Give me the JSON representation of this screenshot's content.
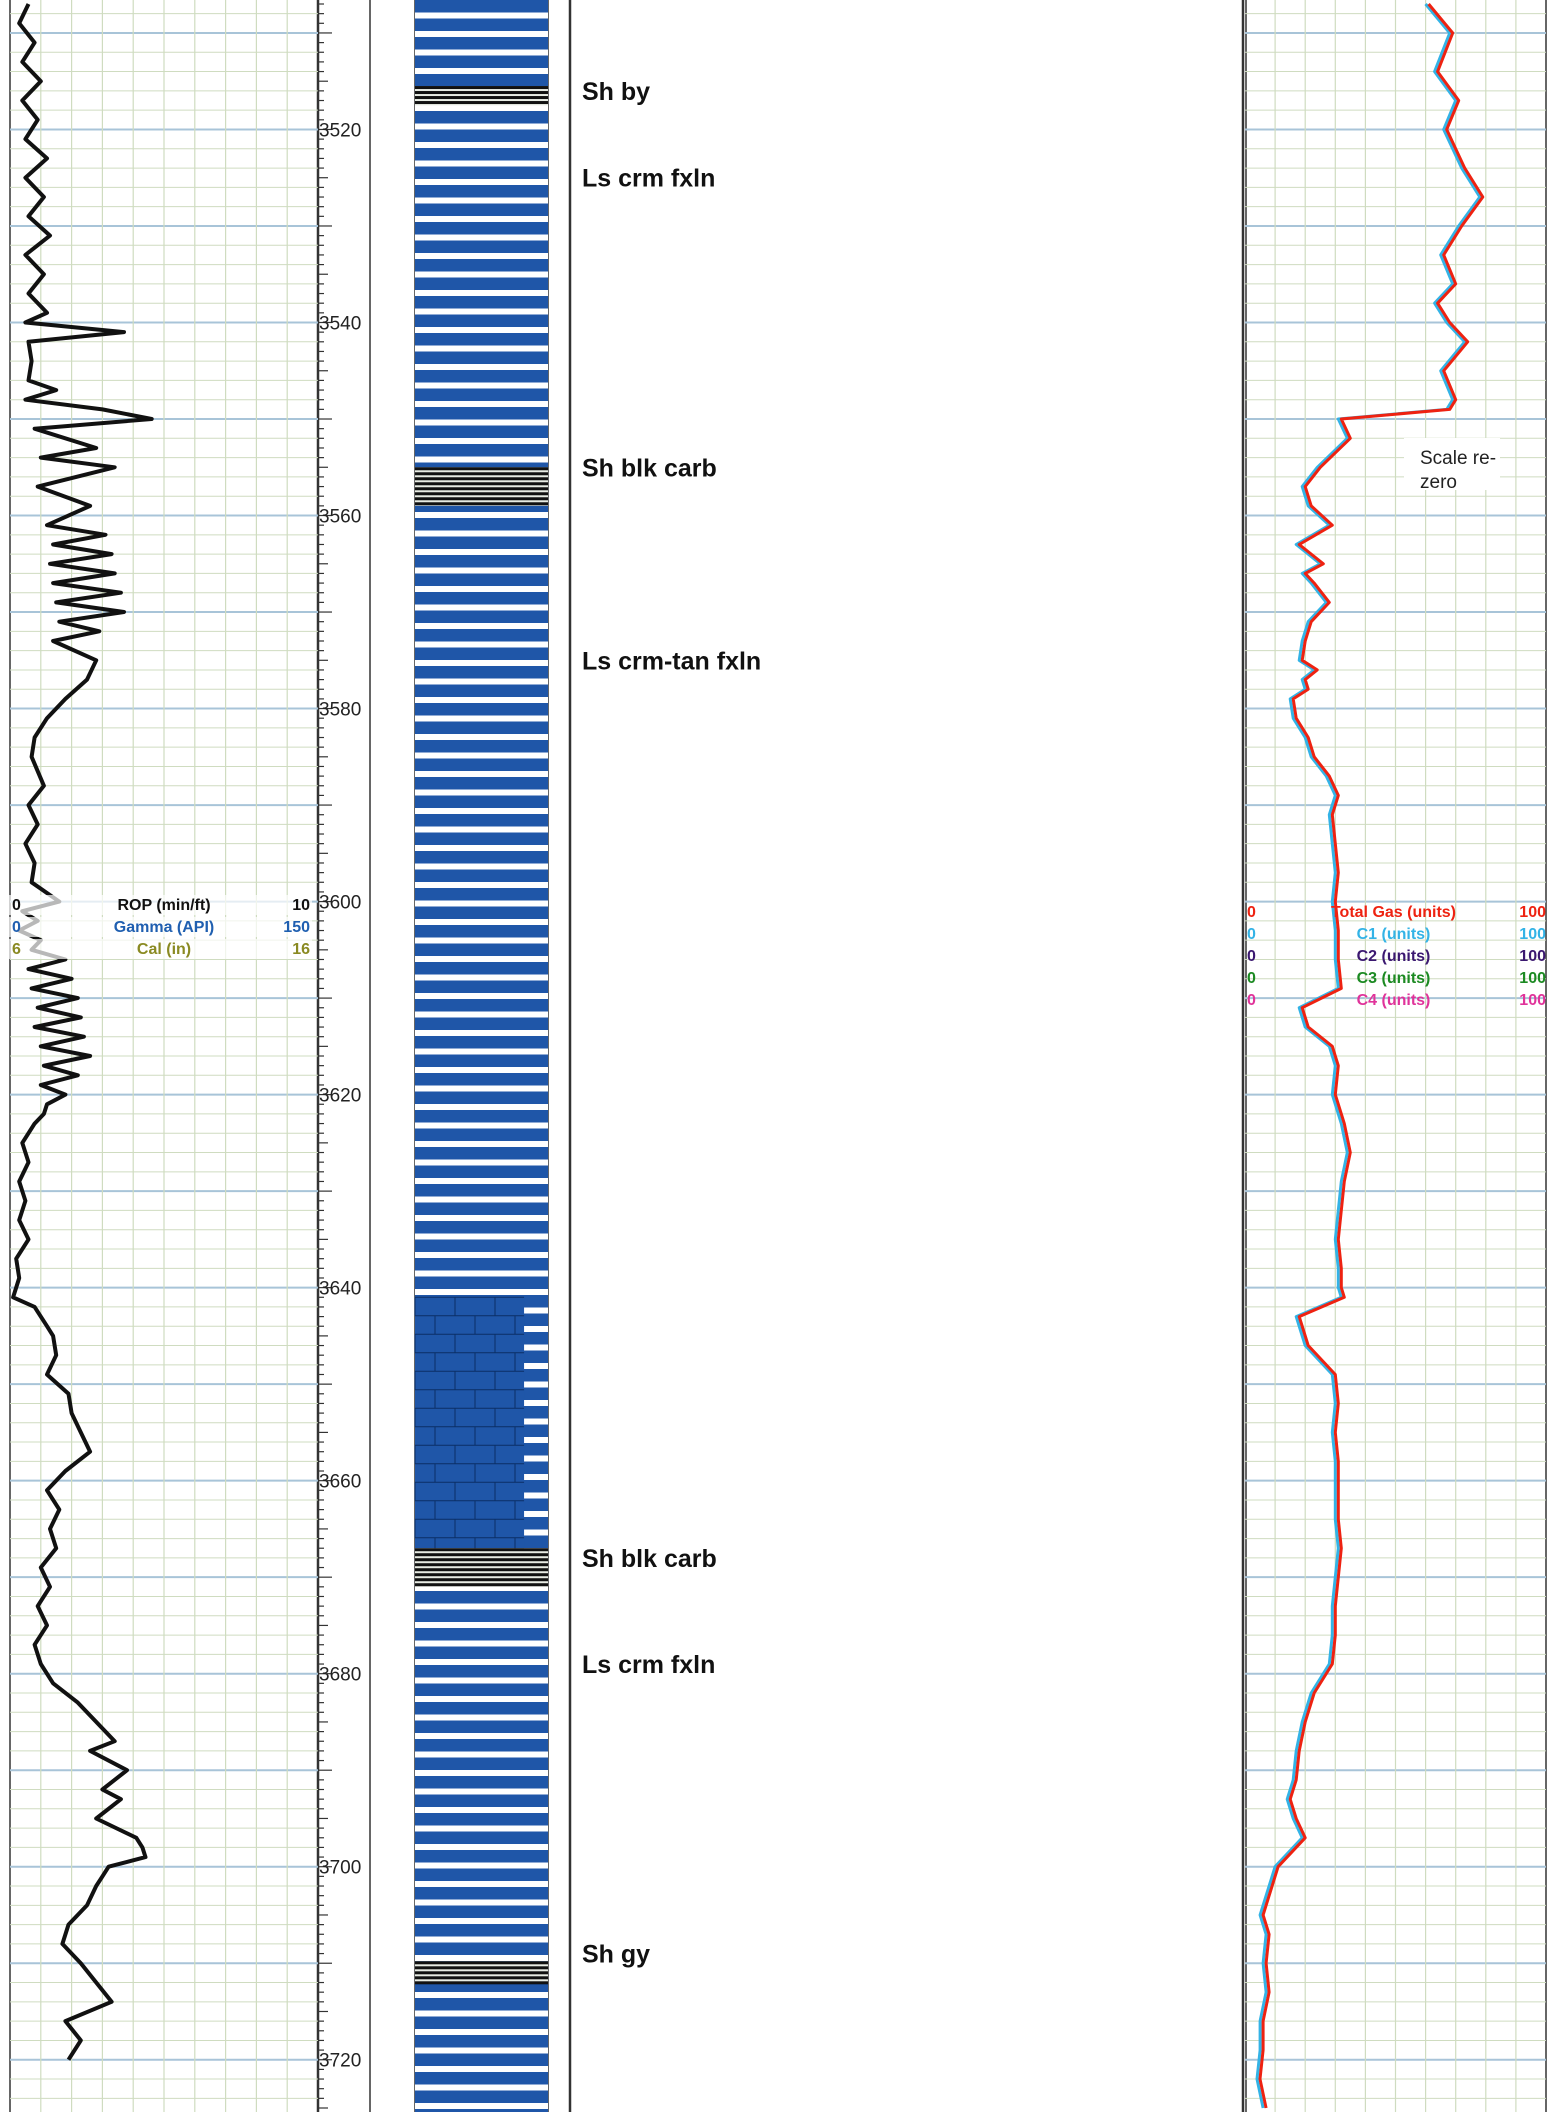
{
  "chart_data": {
    "type": "line",
    "depth_axis": {
      "ylim": [
        3507,
        3725
      ],
      "tick_labels": [
        "3520",
        "3540",
        "3560",
        "3580",
        "3600",
        "3620",
        "3640",
        "3660",
        "3680",
        "3700",
        "3720"
      ]
    },
    "track1": {
      "scales": [
        {
          "name": "ROP (min/ft)",
          "min": "0",
          "max": "10",
          "color": "#111111"
        },
        {
          "name": "Gamma (API)",
          "min": "0",
          "max": "150",
          "color": "#1f5fb0"
        },
        {
          "name": "Cal (in)",
          "min": "6",
          "max": "16",
          "color": "#8a8a22"
        }
      ],
      "rop_series": {
        "name": "ROP (min/ft)",
        "depth": [
          3507,
          3509,
          3511,
          3513,
          3515,
          3517,
          3519,
          3521,
          3523,
          3525,
          3527,
          3529,
          3531,
          3533,
          3535,
          3537,
          3539,
          3540,
          3541,
          3542,
          3544,
          3546,
          3547,
          3548,
          3549,
          3550,
          3551,
          3553,
          3554,
          3555,
          3557,
          3559,
          3561,
          3562,
          3563,
          3564,
          3565,
          3566,
          3567,
          3568,
          3569,
          3570,
          3571,
          3572,
          3573,
          3575,
          3577,
          3579,
          3581,
          3583,
          3585,
          3588,
          3590,
          3592,
          3594,
          3596,
          3598,
          3600,
          3601,
          3602,
          3603,
          3604,
          3605,
          3606,
          3607,
          3608,
          3609,
          3610,
          3611,
          3612,
          3613,
          3614,
          3615,
          3616,
          3617,
          3618,
          3619,
          3620,
          3621,
          3622,
          3623,
          3624,
          3625,
          3627,
          3629,
          3631,
          3633,
          3635,
          3637,
          3639,
          3641,
          3642,
          3643,
          3644,
          3645,
          3647,
          3649,
          3651,
          3653,
          3655,
          3657,
          3659,
          3661,
          3663,
          3665,
          3667,
          3669,
          3671,
          3673,
          3675,
          3677,
          3679,
          3681,
          3683,
          3685,
          3687,
          3688,
          3690,
          3692,
          3693,
          3695,
          3697,
          3698,
          3699,
          3700,
          3701,
          3702,
          3704,
          3706,
          3708,
          3710,
          3712,
          3714,
          3716,
          3718,
          3720,
          3722,
          3724
        ],
        "values": [
          0.6,
          0.3,
          0.8,
          0.4,
          1.0,
          0.4,
          0.9,
          0.5,
          1.2,
          0.5,
          1.1,
          0.6,
          1.3,
          0.5,
          1.1,
          0.6,
          1.2,
          0.5,
          3.7,
          0.6,
          0.7,
          0.6,
          1.5,
          0.5,
          3.0,
          4.6,
          0.8,
          2.8,
          1.0,
          3.4,
          0.9,
          2.6,
          1.2,
          3.1,
          1.4,
          3.3,
          1.3,
          3.4,
          1.4,
          3.6,
          1.5,
          3.7,
          1.6,
          2.9,
          1.4,
          2.8,
          2.5,
          1.8,
          1.2,
          0.8,
          0.7,
          1.1,
          0.6,
          0.9,
          0.5,
          0.8,
          0.7,
          1.6,
          0.4,
          0.9,
          0.3,
          1.0,
          0.7,
          1.8,
          0.6,
          2.0,
          0.7,
          2.2,
          0.9,
          2.3,
          0.8,
          2.4,
          1.0,
          2.6,
          1.1,
          2.2,
          1.0,
          1.8,
          1.2,
          1.1,
          0.8,
          0.6,
          0.4,
          0.6,
          0.3,
          0.5,
          0.3,
          0.6,
          0.2,
          0.3,
          0.1,
          0.8,
          1.0,
          1.2,
          1.4,
          1.5,
          1.2,
          1.9,
          2.0,
          2.3,
          2.6,
          1.8,
          1.2,
          1.6,
          1.3,
          1.5,
          1.0,
          1.3,
          0.9,
          1.2,
          0.8,
          1.0,
          1.4,
          2.2,
          2.8,
          3.4,
          2.6,
          3.8,
          3.0,
          3.6,
          2.8,
          4.1,
          4.3,
          4.4,
          3.2,
          3.0,
          2.8,
          2.5,
          1.9,
          1.7,
          2.3,
          2.8,
          3.3,
          1.8,
          2.3,
          1.9
        ]
      }
    },
    "track3": {
      "scales": [
        {
          "name": "Total Gas (units)",
          "min": "0",
          "max": "100",
          "color": "#ee2211"
        },
        {
          "name": "C1 (units)",
          "min": "0",
          "max": "100",
          "color": "#33b3e6"
        },
        {
          "name": "C2 (units)",
          "min": "0",
          "max": "100",
          "color": "#3b1870"
        },
        {
          "name": "C3 (units)",
          "min": "0",
          "max": "100",
          "color": "#1c8a22"
        },
        {
          "name": "C4 (units)",
          "min": "0",
          "max": "100",
          "color": "#e0339a"
        }
      ],
      "total_gas_series": {
        "name": "Total Gas (units)",
        "depth": [
          3507,
          3510,
          3514,
          3517,
          3520,
          3524,
          3527,
          3530,
          3533,
          3536,
          3538,
          3540,
          3542,
          3545,
          3548,
          3549,
          3550,
          3552,
          3555,
          3557,
          3559,
          3561,
          3563,
          3565,
          3566,
          3567,
          3569,
          3571,
          3573,
          3575,
          3576,
          3577,
          3578,
          3579,
          3581,
          3583,
          3585,
          3587,
          3589,
          3591,
          3594,
          3597,
          3600,
          3603,
          3606,
          3609,
          3611,
          3613,
          3615,
          3617,
          3620,
          3623,
          3626,
          3629,
          3632,
          3635,
          3638,
          3640,
          3641,
          3643,
          3646,
          3649,
          3652,
          3655,
          3658,
          3661,
          3664,
          3667,
          3670,
          3673,
          3676,
          3679,
          3682,
          3685,
          3688,
          3691,
          3693,
          3695,
          3697,
          3700,
          3703,
          3705,
          3707,
          3710,
          3713,
          3716,
          3719,
          3722,
          3725
        ],
        "values": [
          61,
          69,
          64,
          71,
          67,
          73,
          79,
          72,
          66,
          70,
          64,
          68,
          74,
          66,
          70,
          68,
          32,
          35,
          25,
          20,
          22,
          29,
          18,
          26,
          20,
          23,
          28,
          22,
          20,
          19,
          24,
          20,
          21,
          16,
          17,
          21,
          23,
          28,
          31,
          29,
          30,
          31,
          30,
          31,
          31,
          32,
          19,
          21,
          29,
          31,
          30,
          33,
          35,
          33,
          32,
          31,
          32,
          32,
          33,
          18,
          21,
          30,
          31,
          30,
          31,
          31,
          31,
          32,
          31,
          30,
          30,
          29,
          23,
          20,
          18,
          17,
          15,
          17,
          20,
          11,
          8,
          6,
          8,
          7,
          8,
          6,
          6,
          5,
          7
        ]
      },
      "c1_series": {
        "name": "C1 (units)",
        "offset_note": "",
        "values_offset": -0.8
      },
      "rezero_note": "Scale re-zero"
    },
    "lithology": [
      {
        "label": "Sh by",
        "depth": 3516
      },
      {
        "label": "Ls crm fxln",
        "depth": 3525
      },
      {
        "label": "Sh blk carb",
        "depth": 3555
      },
      {
        "label": "Ls crm-tan fxln",
        "depth": 3575
      },
      {
        "label": "Sh blk carb",
        "depth": 3668
      },
      {
        "label": "Ls crm fxln",
        "depth": 3679
      },
      {
        "label": "Sh gy",
        "depth": 3709
      }
    ],
    "lithology_column": {
      "shale_bands": [
        [
          3515.5,
          3517.5
        ],
        [
          3555,
          3559
        ],
        [
          3667,
          3671
        ],
        [
          3709.8,
          3712
        ]
      ],
      "dolomite_block": [
        3641,
        3667
      ]
    },
    "colors": {
      "limestone": "#1f56a8",
      "dolomite": "#1f56a8",
      "shale": "#111111",
      "grid_major": "#a8c4d8",
      "grid_minor": "#cfdcc0"
    }
  }
}
